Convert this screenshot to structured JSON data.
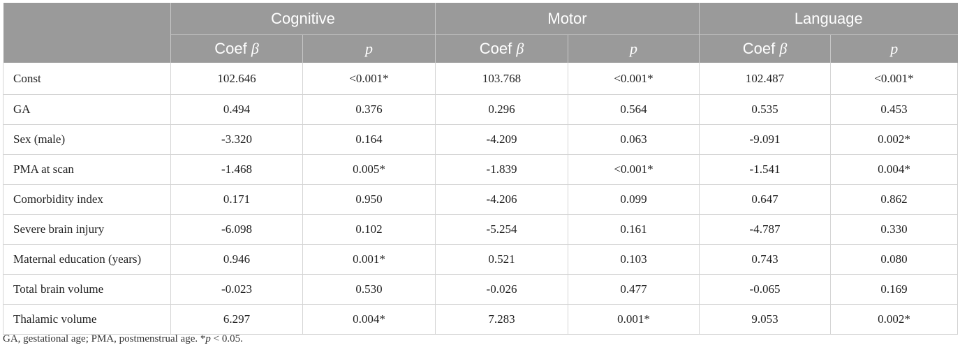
{
  "table": {
    "groups": [
      "Cognitive",
      "Motor",
      "Language"
    ],
    "subheader_coef_text": "Coef ",
    "subheader_coef_symbol": "β",
    "subheader_p": "p",
    "rows": [
      {
        "label": "Const",
        "values": [
          "102.646",
          "<0.001*",
          "103.768",
          "<0.001*",
          "102.487",
          "<0.001*"
        ]
      },
      {
        "label": "GA",
        "values": [
          "0.494",
          "0.376",
          "0.296",
          "0.564",
          "0.535",
          "0.453"
        ]
      },
      {
        "label": "Sex (male)",
        "values": [
          "-3.320",
          "0.164",
          "-4.209",
          "0.063",
          "-9.091",
          "0.002*"
        ]
      },
      {
        "label": "PMA at scan",
        "values": [
          "-1.468",
          "0.005*",
          "-1.839",
          "<0.001*",
          "-1.541",
          "0.004*"
        ]
      },
      {
        "label": "Comorbidity index",
        "values": [
          "0.171",
          "0.950",
          "-4.206",
          "0.099",
          "0.647",
          "0.862"
        ]
      },
      {
        "label": "Severe brain injury",
        "values": [
          "-6.098",
          "0.102",
          "-5.254",
          "0.161",
          "-4.787",
          "0.330"
        ]
      },
      {
        "label": "Maternal education (years)",
        "values": [
          "0.946",
          "0.001*",
          "0.521",
          "0.103",
          "0.743",
          "0.080"
        ]
      },
      {
        "label": "Total brain volume",
        "values": [
          "-0.023",
          "0.530",
          "-0.026",
          "0.477",
          "-0.065",
          "0.169"
        ]
      },
      {
        "label": "Thalamic volume",
        "values": [
          "6.297",
          "0.004*",
          "7.283",
          "0.001*",
          "9.053",
          "0.002*"
        ]
      }
    ]
  },
  "footnote": {
    "text_before": "GA, gestational age; PMA, postmenstrual age. *",
    "p_symbol": "p",
    "text_after": " < 0.05."
  }
}
